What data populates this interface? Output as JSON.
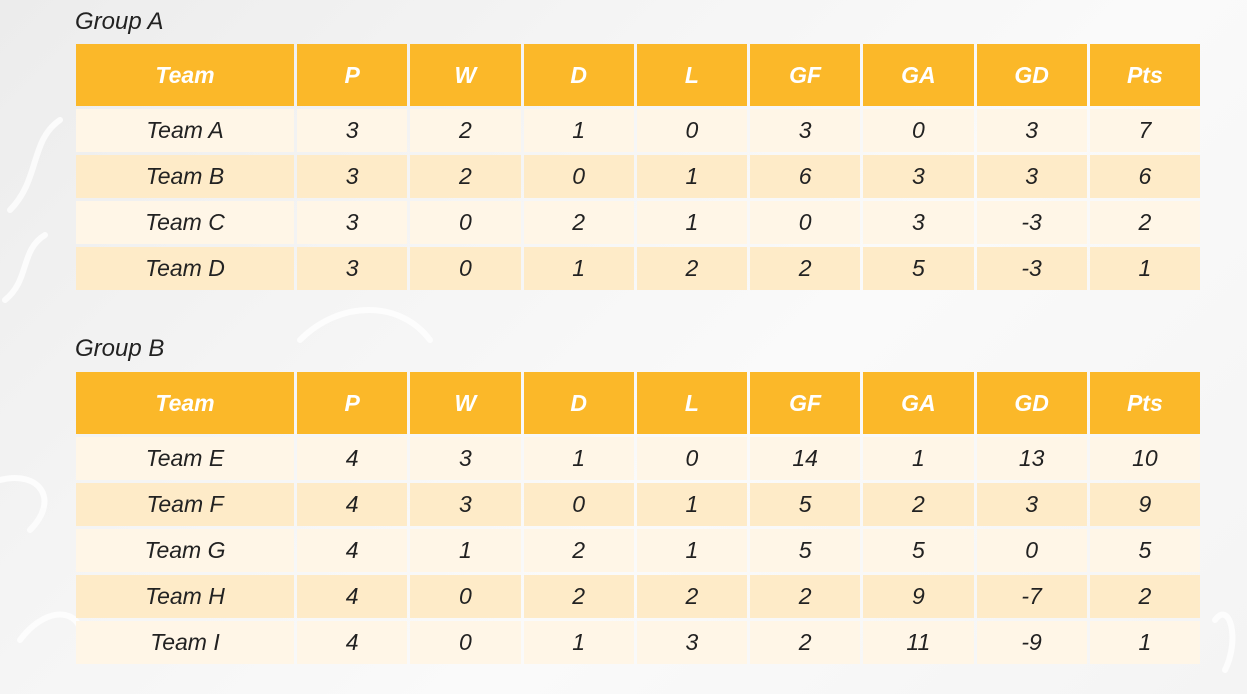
{
  "columns": [
    "Team",
    "P",
    "W",
    "D",
    "L",
    "GF",
    "GA",
    "GD",
    "Pts"
  ],
  "groups": [
    {
      "title": "Group A",
      "rows": [
        {
          "team": "Team A",
          "p": "3",
          "w": "2",
          "d": "1",
          "l": "0",
          "gf": "3",
          "ga": "0",
          "gd": "3",
          "pts": "7"
        },
        {
          "team": "Team B",
          "p": "3",
          "w": "2",
          "d": "0",
          "l": "1",
          "gf": "6",
          "ga": "3",
          "gd": "3",
          "pts": "6"
        },
        {
          "team": "Team C",
          "p": "3",
          "w": "0",
          "d": "2",
          "l": "1",
          "gf": "0",
          "ga": "3",
          "gd": "-3",
          "pts": "2"
        },
        {
          "team": "Team D",
          "p": "3",
          "w": "0",
          "d": "1",
          "l": "2",
          "gf": "2",
          "ga": "5",
          "gd": "-3",
          "pts": "1"
        }
      ]
    },
    {
      "title": "Group B",
      "rows": [
        {
          "team": "Team E",
          "p": "4",
          "w": "3",
          "d": "1",
          "l": "0",
          "gf": "14",
          "ga": "1",
          "gd": "13",
          "pts": "10"
        },
        {
          "team": "Team F",
          "p": "4",
          "w": "3",
          "d": "0",
          "l": "1",
          "gf": "5",
          "ga": "2",
          "gd": "3",
          "pts": "9"
        },
        {
          "team": "Team G",
          "p": "4",
          "w": "1",
          "d": "2",
          "l": "1",
          "gf": "5",
          "ga": "5",
          "gd": "0",
          "pts": "5"
        },
        {
          "team": "Team H",
          "p": "4",
          "w": "0",
          "d": "2",
          "l": "2",
          "gf": "2",
          "ga": "9",
          "gd": "-7",
          "pts": "2"
        },
        {
          "team": "Team I",
          "p": "4",
          "w": "0",
          "d": "1",
          "l": "3",
          "gf": "2",
          "ga": "11",
          "gd": "-9",
          "pts": "1"
        }
      ]
    }
  ],
  "colors": {
    "header": "#fbb829",
    "header_text": "#ffffff",
    "row_light": "#fff6e7",
    "row_dark": "#feebc8"
  }
}
